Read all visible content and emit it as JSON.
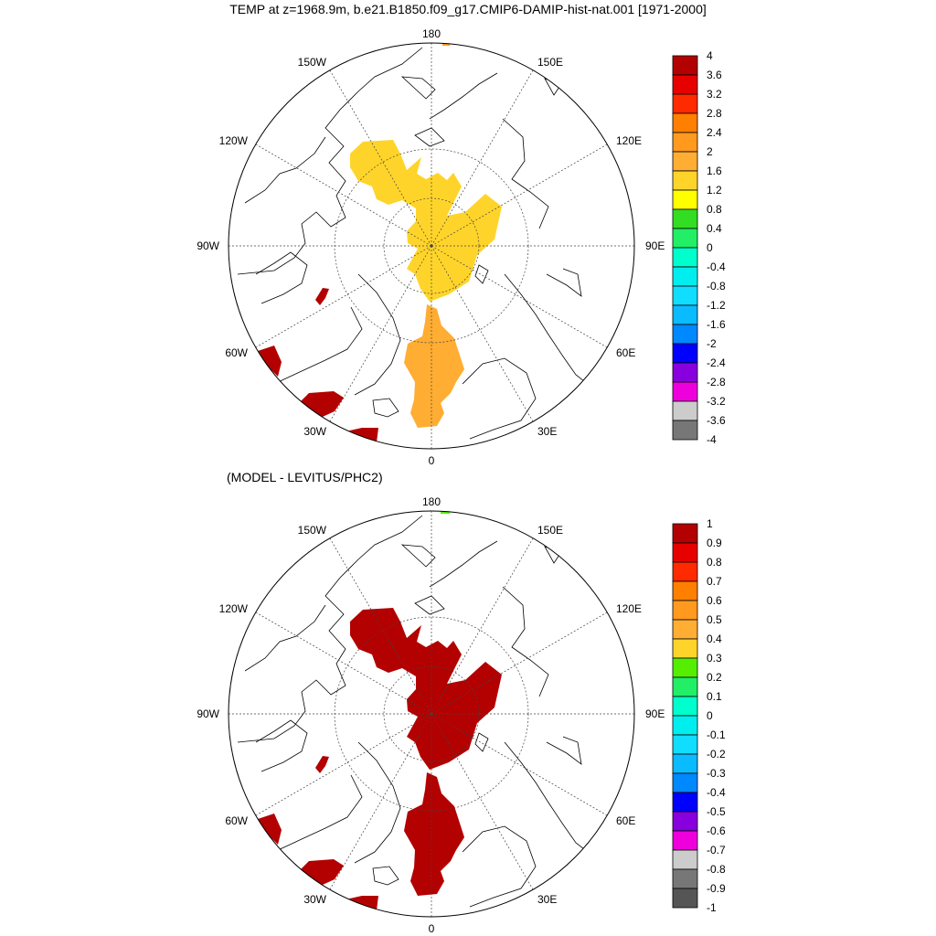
{
  "title": "TEMP at z=1968.9m, b.e21.B1850.f09_g17.CMIP6-DAMIP-hist-nat.001 [1971-2000]",
  "subtitle": "(MODEL - LEVITUS/PHC2)",
  "longitude_labels": [
    "180",
    "150E",
    "120E",
    "90E",
    "60E",
    "30E",
    "0",
    "30W",
    "60W",
    "90W",
    "120W",
    "150W"
  ],
  "panels": [
    {
      "name": "model-temperature",
      "fill_colors": {
        "central_arctic": "#ffd42a",
        "nordic_seas": "#ffad33",
        "north_atlantic": "#b30000",
        "pacific_edge": "#ff9a1f"
      },
      "colorbar": {
        "labels": [
          "4",
          "3.6",
          "3.2",
          "2.8",
          "2.4",
          "2",
          "1.6",
          "1.2",
          "0.8",
          "0.4",
          "0",
          "-0.4",
          "-0.8",
          "-1.2",
          "-1.6",
          "-2",
          "-2.4",
          "-2.8",
          "-3.2",
          "-3.6",
          "-4"
        ],
        "colors": [
          "#b30000",
          "#e60000",
          "#ff2a00",
          "#ff7f00",
          "#ff9a1f",
          "#ffad33",
          "#ffd42a",
          "#ffff00",
          "#33dd22",
          "#22ee66",
          "#00ffcc",
          "#00eeee",
          "#11ddff",
          "#0bbbff",
          "#0088ff",
          "#0000ff",
          "#8800dd",
          "#ee00dd",
          "#cccccc",
          "#777777"
        ]
      }
    },
    {
      "name": "model-minus-levitus",
      "fill_colors": {
        "central_arctic": "#b30000",
        "nordic_seas": "#b30000",
        "north_atlantic": "#b30000",
        "pacific_edge": "#55ee00"
      },
      "colorbar": {
        "labels": [
          "1",
          "0.9",
          "0.8",
          "0.7",
          "0.6",
          "0.5",
          "0.4",
          "0.3",
          "0.2",
          "0.1",
          "0",
          "-0.1",
          "-0.2",
          "-0.3",
          "-0.4",
          "-0.5",
          "-0.6",
          "-0.7",
          "-0.8",
          "-0.9",
          "-1"
        ],
        "colors": [
          "#b30000",
          "#e60000",
          "#ff2a00",
          "#ff7f00",
          "#ff9a1f",
          "#ffad33",
          "#ffd42a",
          "#55ee00",
          "#22ee66",
          "#00ffcc",
          "#00eeee",
          "#11ddff",
          "#0bbbff",
          "#0088ff",
          "#0000ff",
          "#8800dd",
          "#ee00dd",
          "#cccccc",
          "#777777",
          "#555555"
        ]
      }
    }
  ]
}
